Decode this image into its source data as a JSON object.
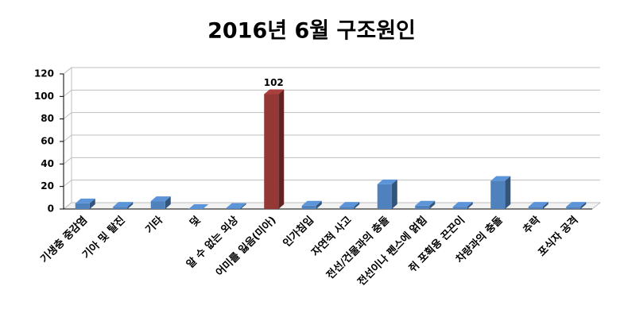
{
  "chart_data": {
    "type": "bar3d",
    "title": "2016년 6월 구조원인",
    "categories": [
      "기생충 중감염",
      "기아 및 탈진",
      "기타",
      "덫",
      "알 수 없는 외상",
      "어미를 잃음(미아)",
      "인가침입",
      "자연적 사고",
      "전선/건물과의 충돌",
      "전선이나 펜스에 얽힘",
      "쥐 포획용 끈끈이",
      "차량과의 충돌",
      "추락",
      "포식자 공격"
    ],
    "values": [
      5,
      2,
      7,
      0,
      1,
      102,
      3,
      2,
      22,
      3,
      2,
      25,
      2,
      2
    ],
    "value_labels": [
      null,
      null,
      null,
      null,
      null,
      "102",
      null,
      null,
      null,
      null,
      null,
      null,
      null,
      null
    ],
    "colors": [
      "#4f81bd",
      "#4f81bd",
      "#4f81bd",
      "#4f81bd",
      "#4f81bd",
      "#953735",
      "#4f81bd",
      "#4f81bd",
      "#4f81bd",
      "#4f81bd",
      "#4f81bd",
      "#4f81bd",
      "#4f81bd",
      "#4f81bd"
    ],
    "ylim": [
      0,
      120
    ],
    "yticks": [
      0,
      20,
      40,
      60,
      80,
      100,
      120
    ],
    "grid": true
  }
}
